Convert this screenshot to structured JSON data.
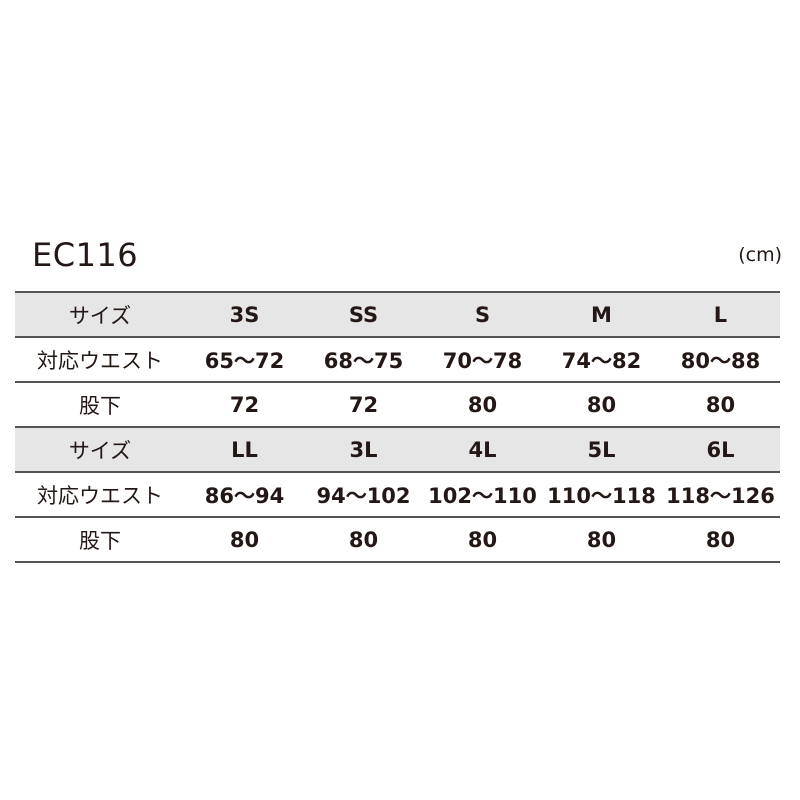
{
  "title": "EC116",
  "unit": "(cm)",
  "blocks": [
    {
      "size_label": "サイズ",
      "sizes": [
        "3S",
        "SS",
        "S",
        "M",
        "L"
      ],
      "waist_label": "対応ウエスト",
      "waist": [
        "65〜72",
        "68〜75",
        "70〜78",
        "74〜82",
        "80〜88"
      ],
      "inseam_label": "股下",
      "inseam": [
        "72",
        "72",
        "80",
        "80",
        "80"
      ]
    },
    {
      "size_label": "サイズ",
      "sizes": [
        "LL",
        "3L",
        "4L",
        "5L",
        "6L"
      ],
      "waist_label": "対応ウエスト",
      "waist": [
        "86〜94",
        "94〜102",
        "102〜110",
        "110〜118",
        "118〜126"
      ],
      "inseam_label": "股下",
      "inseam": [
        "80",
        "80",
        "80",
        "80",
        "80"
      ]
    }
  ],
  "colors": {
    "header_bg": "#e6e6e6",
    "text": "#231815",
    "rule": "#555555"
  }
}
